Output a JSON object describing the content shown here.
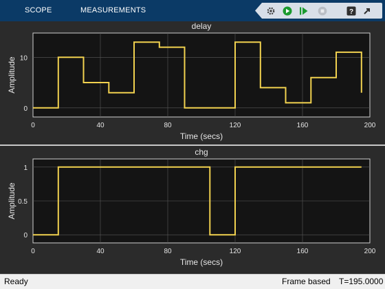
{
  "toolbar": {
    "tabs": [
      "SCOPE",
      "MEASUREMENTS"
    ],
    "icons": [
      "settings-icon",
      "run-icon",
      "step-forward-icon",
      "stop-icon",
      "help-icon",
      "undock-icon"
    ]
  },
  "status": {
    "ready": "Ready",
    "mode": "Frame based",
    "time": "T=195.0000"
  },
  "colors": {
    "toolbar": "#0b3a66",
    "plot_bg": "#141414",
    "signal": "#f2d24f",
    "grid": "#5a5a5a",
    "axis_text": "#e6e6e6"
  },
  "chart_data": [
    {
      "type": "line",
      "step": true,
      "title": "delay",
      "xlabel": "Time (secs)",
      "ylabel": "Amplitude",
      "xlim": [
        0,
        200
      ],
      "ylim": [
        -1.8,
        14.8
      ],
      "xticks": [
        0,
        40,
        80,
        120,
        160,
        200
      ],
      "yticks": [
        0,
        10
      ],
      "grid": true,
      "series": [
        {
          "x": [
            0,
            15,
            15,
            30,
            30,
            45,
            45,
            60,
            60,
            75,
            75,
            90,
            90,
            120,
            120,
            135,
            135,
            150,
            150,
            165,
            165,
            180,
            180,
            195,
            195
          ],
          "y": [
            0,
            0,
            10,
            10,
            5,
            5,
            3,
            3,
            13,
            13,
            12,
            12,
            0,
            0,
            13,
            13,
            4,
            4,
            1,
            1,
            6,
            6,
            11,
            11,
            3
          ]
        }
      ]
    },
    {
      "type": "line",
      "step": true,
      "title": "chg",
      "xlabel": "Time (secs)",
      "ylabel": "Amplitude",
      "xlim": [
        0,
        200
      ],
      "ylim": [
        -0.12,
        1.12
      ],
      "xticks": [
        0,
        40,
        80,
        120,
        160,
        200
      ],
      "yticks": [
        0,
        0.5,
        1
      ],
      "grid": true,
      "series": [
        {
          "x": [
            0,
            15,
            15,
            105,
            105,
            120,
            120,
            195
          ],
          "y": [
            0,
            0,
            1,
            1,
            0,
            0,
            1,
            1
          ]
        }
      ]
    }
  ]
}
